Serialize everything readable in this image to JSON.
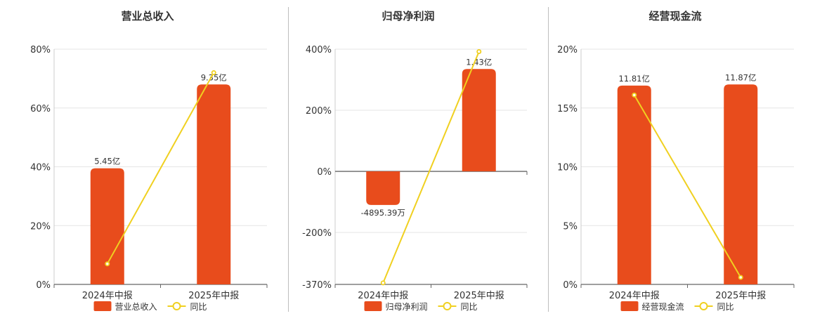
{
  "colors": {
    "bar": "#e84c1c",
    "line": "#f0d020",
    "grid": "#e6e6e6",
    "axis": "#666666"
  },
  "chart_data": [
    {
      "type": "bar",
      "title": "营业总收入",
      "categories": [
        "2024年中报",
        "2025年中报"
      ],
      "series": [
        {
          "name": "营业总收入",
          "kind": "bar",
          "values": [
            39.5,
            68.0
          ],
          "labels": [
            "5.45亿",
            "9.35亿"
          ]
        },
        {
          "name": "同比",
          "kind": "line",
          "values": [
            7,
            72
          ]
        }
      ],
      "y_ticks": [
        "80%",
        "60%",
        "40%",
        "20%",
        "0%"
      ],
      "y_tick_values": [
        80,
        60,
        40,
        20,
        0
      ],
      "ylim": [
        0,
        80
      ],
      "grid": true,
      "legend": "bottom"
    },
    {
      "type": "bar",
      "title": "归母净利润",
      "categories": [
        "2024年中报",
        "2025年中报"
      ],
      "series": [
        {
          "name": "归母净利润",
          "kind": "bar",
          "values": [
            -110,
            335
          ],
          "labels": [
            "-4895.39万",
            "1.43亿"
          ]
        },
        {
          "name": "同比",
          "kind": "line",
          "values": [
            -365,
            392
          ]
        }
      ],
      "y_ticks": [
        "400%",
        "200%",
        "0%",
        "-200%",
        "-370%"
      ],
      "y_tick_values": [
        400,
        200,
        0,
        -200,
        -370
      ],
      "ylim": [
        -370,
        400
      ],
      "grid": true,
      "legend": "bottom"
    },
    {
      "type": "bar",
      "title": "经营现金流",
      "categories": [
        "2024年中报",
        "2025年中报"
      ],
      "series": [
        {
          "name": "经营现金流",
          "kind": "bar",
          "values": [
            16.9,
            17.0
          ],
          "labels": [
            "11.81亿",
            "11.87亿"
          ]
        },
        {
          "name": "同比",
          "kind": "line",
          "values": [
            16.1,
            0.6
          ]
        }
      ],
      "y_ticks": [
        "20%",
        "15%",
        "10%",
        "5%",
        "0%"
      ],
      "y_tick_values": [
        20,
        15,
        10,
        5,
        0
      ],
      "ylim": [
        0,
        20
      ],
      "grid": true,
      "legend": "bottom"
    }
  ]
}
